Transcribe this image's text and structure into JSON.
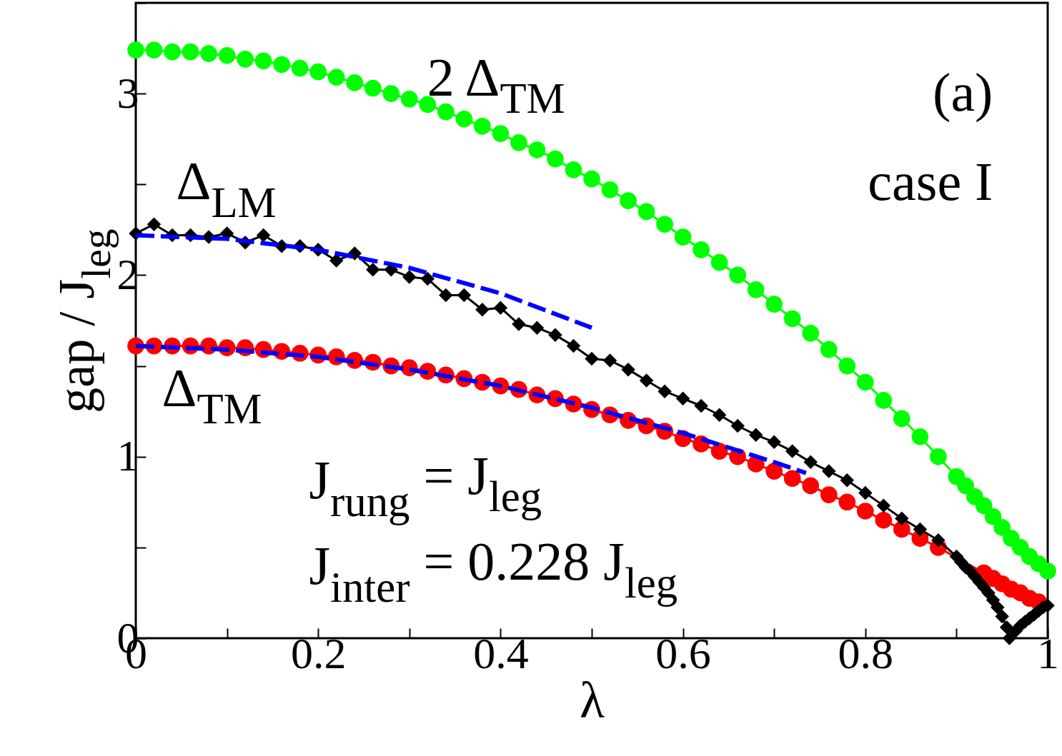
{
  "chart_data": {
    "type": "line",
    "xlabel": "λ",
    "ylabel": "gap / J$_{leg}$",
    "xlim": [
      0,
      1
    ],
    "ylim": [
      0,
      3.5
    ],
    "xticks": [
      0,
      {
        "value": 0.1,
        "label": null
      },
      0.2,
      {
        "value": 0.3,
        "label": null
      },
      0.4,
      {
        "value": 0.5,
        "label": null
      },
      0.6,
      {
        "value": 0.7,
        "label": null
      },
      0.8,
      {
        "value": 0.9,
        "label": null
      },
      1
    ],
    "yticks": [
      0,
      {
        "value": 0.5,
        "label": null
      },
      1,
      {
        "value": 1.5,
        "label": null
      },
      2,
      {
        "value": 2.5,
        "label": null
      },
      3,
      {
        "value": 3.5,
        "label": null
      }
    ],
    "grid": false,
    "annotations": [
      "(a)",
      "case I",
      "J$_{rung}$ = J$_{leg}$",
      "J$_{inter}$ = 0.228 J$_{leg}$"
    ],
    "series": [
      {
        "name": "2 Δ$_{TM}$",
        "color": "#00ff00",
        "marker": "circle",
        "line_style": "solid",
        "x": [
          0,
          0.02,
          0.04,
          0.06,
          0.08,
          0.1,
          0.12,
          0.14,
          0.16,
          0.18,
          0.2,
          0.22,
          0.24,
          0.26,
          0.28,
          0.3,
          0.32,
          0.34,
          0.36,
          0.38,
          0.4,
          0.42,
          0.44,
          0.46,
          0.48,
          0.5,
          0.52,
          0.54,
          0.56,
          0.58,
          0.6,
          0.62,
          0.64,
          0.66,
          0.68,
          0.7,
          0.72,
          0.74,
          0.76,
          0.78,
          0.8,
          0.82,
          0.84,
          0.86,
          0.88,
          0.9,
          0.91,
          0.92,
          0.93,
          0.94,
          0.95,
          0.96,
          0.97,
          0.98,
          0.99,
          1
        ],
        "values": [
          3.24,
          3.24,
          3.23,
          3.23,
          3.22,
          3.21,
          3.19,
          3.18,
          3.16,
          3.14,
          3.12,
          3.09,
          3.06,
          3.03,
          3.0,
          2.97,
          2.94,
          2.9,
          2.86,
          2.82,
          2.78,
          2.73,
          2.69,
          2.64,
          2.58,
          2.53,
          2.47,
          2.41,
          2.35,
          2.28,
          2.21,
          2.14,
          2.07,
          2.0,
          1.92,
          1.84,
          1.76,
          1.68,
          1.59,
          1.5,
          1.41,
          1.31,
          1.21,
          1.11,
          1.0,
          0.89,
          0.84,
          0.78,
          0.73,
          0.67,
          0.61,
          0.55,
          0.5,
          0.45,
          0.41,
          0.37
        ]
      },
      {
        "name": "Δ$_{TM}$",
        "color": "#ff0000",
        "marker": "circle",
        "line_style": "solid",
        "x": [
          0,
          0.02,
          0.04,
          0.06,
          0.08,
          0.1,
          0.12,
          0.14,
          0.16,
          0.18,
          0.2,
          0.22,
          0.24,
          0.26,
          0.28,
          0.3,
          0.32,
          0.34,
          0.36,
          0.38,
          0.4,
          0.42,
          0.44,
          0.46,
          0.48,
          0.5,
          0.52,
          0.54,
          0.56,
          0.58,
          0.6,
          0.62,
          0.64,
          0.66,
          0.68,
          0.7,
          0.72,
          0.74,
          0.76,
          0.78,
          0.8,
          0.82,
          0.84,
          0.86,
          0.88,
          0.93,
          0.94,
          0.95,
          0.96,
          0.97,
          0.98,
          0.99
        ],
        "values": [
          1.61,
          1.61,
          1.61,
          1.61,
          1.61,
          1.6,
          1.6,
          1.59,
          1.58,
          1.57,
          1.56,
          1.55,
          1.53,
          1.52,
          1.5,
          1.49,
          1.47,
          1.45,
          1.43,
          1.41,
          1.39,
          1.37,
          1.34,
          1.32,
          1.29,
          1.26,
          1.23,
          1.2,
          1.17,
          1.14,
          1.1,
          1.07,
          1.03,
          1.0,
          0.96,
          0.92,
          0.88,
          0.84,
          0.79,
          0.75,
          0.7,
          0.65,
          0.6,
          0.55,
          0.5,
          0.36,
          0.33,
          0.3,
          0.27,
          0.25,
          0.22,
          0.2
        ]
      },
      {
        "name": "Δ$_{LM}$",
        "color": "#000000",
        "marker": "diamond",
        "line_style": "solid",
        "x": [
          0,
          0.02,
          0.04,
          0.06,
          0.08,
          0.1,
          0.12,
          0.14,
          0.16,
          0.18,
          0.2,
          0.22,
          0.24,
          0.26,
          0.28,
          0.3,
          0.32,
          0.34,
          0.36,
          0.38,
          0.4,
          0.42,
          0.44,
          0.46,
          0.48,
          0.5,
          0.52,
          0.54,
          0.56,
          0.58,
          0.6,
          0.62,
          0.64,
          0.66,
          0.68,
          0.7,
          0.72,
          0.74,
          0.76,
          0.78,
          0.8,
          0.82,
          0.84,
          0.86,
          0.88,
          0.9,
          0.905,
          0.91,
          0.915,
          0.92,
          0.925,
          0.93,
          0.935,
          0.94,
          0.945,
          0.95,
          0.955,
          0.958,
          0.965,
          0.97,
          0.975,
          0.98,
          0.985,
          0.99,
          0.995,
          1
        ],
        "values": [
          2.23,
          2.28,
          2.22,
          2.22,
          2.21,
          2.23,
          2.18,
          2.22,
          2.16,
          2.16,
          2.14,
          2.08,
          2.12,
          2.03,
          2.03,
          1.99,
          1.98,
          1.89,
          1.89,
          1.81,
          1.82,
          1.73,
          1.71,
          1.67,
          1.61,
          1.54,
          1.53,
          1.48,
          1.42,
          1.36,
          1.32,
          1.28,
          1.23,
          1.17,
          1.12,
          1.08,
          1.03,
          0.97,
          0.92,
          0.87,
          0.8,
          0.73,
          0.66,
          0.6,
          0.54,
          0.45,
          0.42,
          0.39,
          0.37,
          0.34,
          0.31,
          0.28,
          0.25,
          0.21,
          0.17,
          0.12,
          0.06,
          0.0,
          0.04,
          0.07,
          0.09,
          0.11,
          0.13,
          0.15,
          0.17,
          0.18
        ]
      },
      {
        "color": "#0000ff",
        "marker": "none",
        "line_style": "dashed",
        "x": [
          0,
          0.1,
          0.2,
          0.3,
          0.4,
          0.5
        ],
        "values": [
          2.22,
          2.2,
          2.14,
          2.04,
          1.9,
          1.71
        ]
      },
      {
        "color": "#0000ff",
        "marker": "none",
        "line_style": "dashed",
        "x": [
          0,
          0.1,
          0.2,
          0.3,
          0.4,
          0.5,
          0.6,
          0.7,
          0.735
        ],
        "values": [
          1.61,
          1.59,
          1.55,
          1.48,
          1.39,
          1.27,
          1.13,
          0.97,
          0.91
        ]
      }
    ]
  }
}
